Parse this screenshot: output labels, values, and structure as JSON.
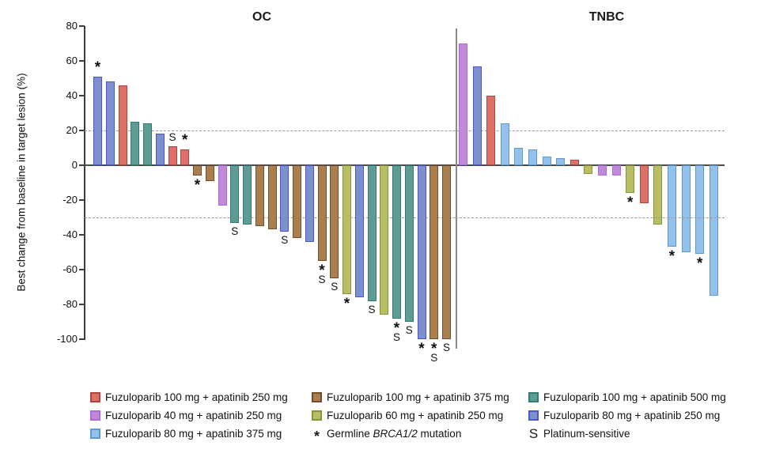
{
  "chart_data": {
    "type": "bar",
    "subtype": "waterfall",
    "axis": {
      "ylabel": "Best change from baseline in target lesion (%)",
      "ylim": [
        -100,
        80
      ],
      "yticks": [
        80,
        60,
        40,
        20,
        0,
        -20,
        -40,
        -60,
        -80,
        -100
      ],
      "reference_lines": [
        20,
        -30
      ],
      "grid": "off"
    },
    "marks_key": {
      "*": "Germline BRCA1/2 mutation",
      "S": "Platinum-sensitive"
    },
    "colors": {
      "red": {
        "fill": "#DB7168",
        "edge": "#B2443C"
      },
      "purple": {
        "fill": "#BE8BD8",
        "edge": "#B266E0"
      },
      "skyblue": {
        "fill": "#93C1E9",
        "edge": "#5B9BD5"
      },
      "brown": {
        "fill": "#A97F50",
        "edge": "#6F4E2B"
      },
      "olive": {
        "fill": "#B9BE66",
        "edge": "#86972F"
      },
      "teal": {
        "fill": "#5C9C92",
        "edge": "#2F7D72"
      },
      "blue": {
        "fill": "#7B90CC",
        "edge": "#4A55D6"
      }
    },
    "panels": [
      {
        "label": "OC",
        "bars": [
          {
            "v": 51,
            "c": "blue",
            "m": "*"
          },
          {
            "v": 48,
            "c": "blue"
          },
          {
            "v": 46,
            "c": "red"
          },
          {
            "v": 25,
            "c": "teal"
          },
          {
            "v": 24,
            "c": "teal"
          },
          {
            "v": 18,
            "c": "blue"
          },
          {
            "v": 11,
            "c": "red",
            "m": "S"
          },
          {
            "v": 9,
            "c": "red",
            "m": "*"
          },
          {
            "v": -6,
            "c": "brown",
            "m": "*"
          },
          {
            "v": -9,
            "c": "brown"
          },
          {
            "v": -23,
            "c": "purple"
          },
          {
            "v": -33,
            "c": "teal",
            "m": "S"
          },
          {
            "v": -34,
            "c": "teal"
          },
          {
            "v": -35,
            "c": "brown"
          },
          {
            "v": -37,
            "c": "brown"
          },
          {
            "v": -38,
            "c": "blue",
            "m": "S"
          },
          {
            "v": -42,
            "c": "brown"
          },
          {
            "v": -44,
            "c": "blue"
          },
          {
            "v": -55,
            "c": "brown",
            "m": "*S"
          },
          {
            "v": -65,
            "c": "brown",
            "m": "S"
          },
          {
            "v": -74,
            "c": "olive",
            "m": "*"
          },
          {
            "v": -76,
            "c": "blue"
          },
          {
            "v": -78,
            "c": "teal",
            "m": "S"
          },
          {
            "v": -86,
            "c": "olive"
          },
          {
            "v": -88,
            "c": "teal",
            "m": "*S"
          },
          {
            "v": -90,
            "c": "teal",
            "m": "S"
          },
          {
            "v": -100,
            "c": "blue",
            "m": "*"
          },
          {
            "v": -100,
            "c": "brown",
            "m": "*S"
          },
          {
            "v": -100,
            "c": "brown",
            "m": "S"
          }
        ]
      },
      {
        "label": "TNBC",
        "bars": [
          {
            "v": 70,
            "c": "purple"
          },
          {
            "v": 57,
            "c": "blue"
          },
          {
            "v": 40,
            "c": "red"
          },
          {
            "v": 24,
            "c": "skyblue"
          },
          {
            "v": 10,
            "c": "skyblue"
          },
          {
            "v": 9,
            "c": "skyblue"
          },
          {
            "v": 5,
            "c": "skyblue"
          },
          {
            "v": 4,
            "c": "skyblue"
          },
          {
            "v": 3,
            "c": "red"
          },
          {
            "v": -5,
            "c": "olive"
          },
          {
            "v": -6,
            "c": "purple"
          },
          {
            "v": -6,
            "c": "purple"
          },
          {
            "v": -16,
            "c": "olive",
            "m": "*"
          },
          {
            "v": -22,
            "c": "red"
          },
          {
            "v": -34,
            "c": "olive"
          },
          {
            "v": -47,
            "c": "skyblue",
            "m": "*"
          },
          {
            "v": -50,
            "c": "skyblue"
          },
          {
            "v": -51,
            "c": "skyblue",
            "m": "*"
          },
          {
            "v": -75,
            "c": "skyblue"
          }
        ]
      }
    ],
    "legend": {
      "columns": [
        {
          "items": [
            {
              "swatch": "red",
              "label": "Fuzuloparib 100 mg + apatinib 250 mg"
            },
            {
              "swatch": "purple",
              "label": "Fuzuloparib 40 mg + apatinib 250 mg"
            },
            {
              "swatch": "skyblue",
              "label": "Fuzuloparib 80 mg + apatinib 375 mg"
            }
          ]
        },
        {
          "items": [
            {
              "swatch": "brown",
              "label": "Fuzuloparib 100 mg + apatinib 375 mg"
            },
            {
              "swatch": "olive",
              "label": "Fuzuloparib 60 mg + apatinib 250 mg"
            },
            {
              "marker": "*",
              "label_parts": [
                {
                  "t": "Germline "
                },
                {
                  "t": "BRCA1/2",
                  "i": true
                },
                {
                  "t": " mutation"
                }
              ]
            }
          ]
        },
        {
          "items": [
            {
              "swatch": "teal",
              "label": "Fuzuloparib 100 mg + apatinib 500 mg"
            },
            {
              "swatch": "blue",
              "label": "Fuzuloparib 80 mg + apatinib 250 mg"
            },
            {
              "marker": "S",
              "label": "Platinum-sensitive"
            }
          ]
        }
      ]
    }
  }
}
